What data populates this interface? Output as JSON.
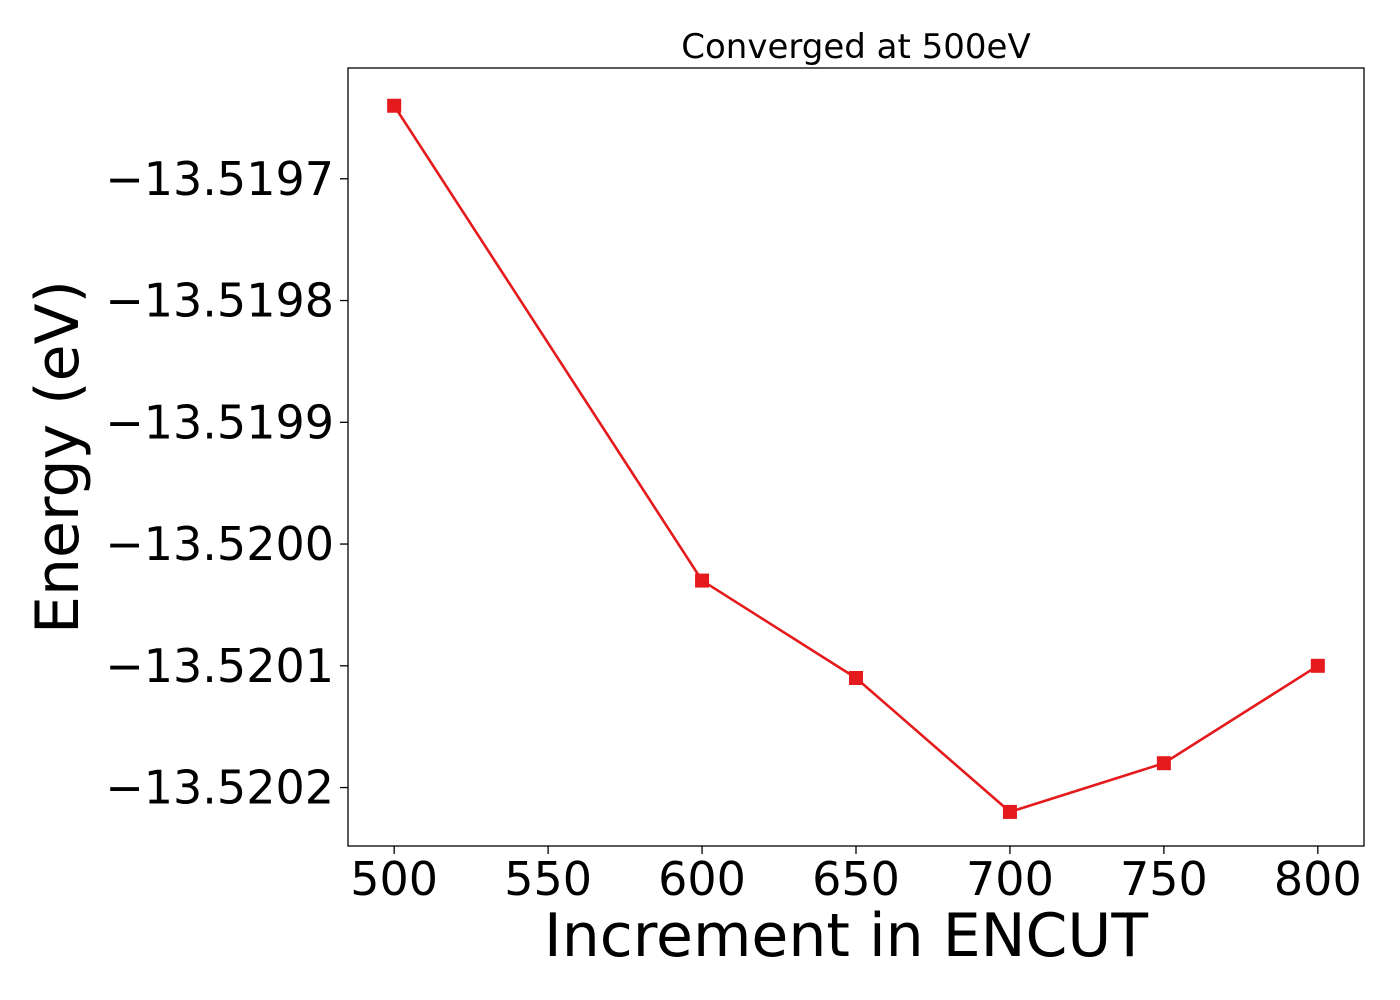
{
  "chart_data": {
    "type": "line",
    "title": "Converged at 500eV",
    "xlabel": "Increment in ENCUT",
    "ylabel": "Energy (eV)",
    "x": [
      500,
      600,
      650,
      700,
      750,
      800
    ],
    "series": [
      {
        "values": [
          -13.51964,
          -13.52003,
          -13.52011,
          -13.52022,
          -13.52018,
          -13.5201
        ],
        "color": "#e41a1c",
        "marker": "square"
      }
    ],
    "xticks": [
      500,
      550,
      600,
      650,
      700,
      750,
      800
    ],
    "xtick_labels": [
      "500",
      "550",
      "600",
      "650",
      "700",
      "750",
      "800"
    ],
    "yticks": [
      -13.5197,
      -13.5198,
      -13.5199,
      -13.52,
      -13.5201,
      -13.5202
    ],
    "ytick_labels": [
      "−13.5197",
      "−13.5198",
      "−13.5199",
      "−13.5200",
      "−13.5201",
      "−13.5202"
    ],
    "xlim": [
      485,
      815
    ],
    "ylim": [
      -13.520248,
      -13.519609
    ],
    "grid": false,
    "legend": "none"
  }
}
